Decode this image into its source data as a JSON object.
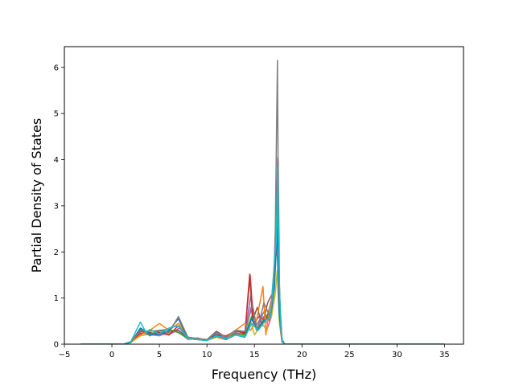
{
  "chart_data": {
    "type": "line",
    "title": "",
    "xlabel": "Frequency (THz)",
    "ylabel": "Partial Density of States",
    "xlim": [
      -5,
      37
    ],
    "ylim": [
      0,
      6.45
    ],
    "xticks": [
      -5,
      0,
      5,
      10,
      15,
      20,
      25,
      30,
      35
    ],
    "yticks": [
      0,
      1,
      2,
      3,
      4,
      5,
      6
    ],
    "grid": false,
    "legend": "none",
    "x_range_plotted": [
      -3.3,
      35
    ],
    "series": [
      {
        "color": "#bcbd22",
        "points": [
          [
            -3.3,
            0
          ],
          [
            1.2,
            0
          ],
          [
            2,
            0.04
          ],
          [
            3,
            0.18
          ],
          [
            4,
            0.22
          ],
          [
            5,
            0.28
          ],
          [
            6,
            0.22
          ],
          [
            7,
            0.3
          ],
          [
            8,
            0.12
          ],
          [
            9,
            0.1
          ],
          [
            10,
            0.08
          ],
          [
            11,
            0.15
          ],
          [
            12,
            0.12
          ],
          [
            13,
            0.2
          ],
          [
            14,
            0.18
          ],
          [
            14.6,
            0.5
          ],
          [
            15,
            0.2
          ],
          [
            15.8,
            0.45
          ],
          [
            16.3,
            0.3
          ],
          [
            16.8,
            0.6
          ],
          [
            17.2,
            1.1
          ],
          [
            17.4,
            1.6
          ],
          [
            17.6,
            0.5
          ],
          [
            17.9,
            0.05
          ],
          [
            18.2,
            0
          ],
          [
            35,
            0
          ]
        ]
      },
      {
        "color": "#e377c2",
        "points": [
          [
            -3.3,
            0
          ],
          [
            1.2,
            0
          ],
          [
            2,
            0.05
          ],
          [
            3,
            0.25
          ],
          [
            4,
            0.2
          ],
          [
            5,
            0.18
          ],
          [
            6,
            0.25
          ],
          [
            7,
            0.28
          ],
          [
            8,
            0.1
          ],
          [
            9,
            0.14
          ],
          [
            10,
            0.08
          ],
          [
            11,
            0.18
          ],
          [
            12,
            0.14
          ],
          [
            13,
            0.22
          ],
          [
            14,
            0.15
          ],
          [
            14.6,
            0.8
          ],
          [
            15.2,
            0.3
          ],
          [
            15.9,
            0.6
          ],
          [
            16.5,
            0.4
          ],
          [
            16.9,
            0.9
          ],
          [
            17.2,
            2.1
          ],
          [
            17.4,
            2.8
          ],
          [
            17.6,
            0.9
          ],
          [
            17.9,
            0.1
          ],
          [
            18.2,
            0
          ],
          [
            35,
            0
          ]
        ]
      },
      {
        "color": "#9467bd",
        "points": [
          [
            -3.3,
            0
          ],
          [
            1.2,
            0
          ],
          [
            2.1,
            0.06
          ],
          [
            3.2,
            0.3
          ],
          [
            4,
            0.18
          ],
          [
            5.1,
            0.3
          ],
          [
            6,
            0.2
          ],
          [
            7.1,
            0.35
          ],
          [
            8,
            0.12
          ],
          [
            9,
            0.1
          ],
          [
            10,
            0.1
          ],
          [
            11,
            0.22
          ],
          [
            12,
            0.12
          ],
          [
            13,
            0.25
          ],
          [
            14,
            0.2
          ],
          [
            14.6,
            1.05
          ],
          [
            15.2,
            0.4
          ],
          [
            16,
            0.7
          ],
          [
            16.6,
            0.5
          ],
          [
            17,
            1.1
          ],
          [
            17.25,
            2.6
          ],
          [
            17.45,
            4.05
          ],
          [
            17.6,
            1.2
          ],
          [
            17.9,
            0.1
          ],
          [
            18.2,
            0
          ],
          [
            35,
            0
          ]
        ]
      },
      {
        "color": "#8c564b",
        "points": [
          [
            -3.3,
            0
          ],
          [
            1.2,
            0
          ],
          [
            2,
            0.05
          ],
          [
            3,
            0.28
          ],
          [
            4,
            0.25
          ],
          [
            5,
            0.22
          ],
          [
            6,
            0.28
          ],
          [
            7,
            0.3
          ],
          [
            8,
            0.14
          ],
          [
            9,
            0.12
          ],
          [
            10,
            0.1
          ],
          [
            11,
            0.28
          ],
          [
            12,
            0.15
          ],
          [
            13,
            0.3
          ],
          [
            14,
            0.22
          ],
          [
            14.5,
            1.52
          ],
          [
            14.8,
            0.5
          ],
          [
            15.3,
            0.8
          ],
          [
            15.8,
            0.4
          ],
          [
            16.4,
            0.9
          ],
          [
            16.9,
            1.1
          ],
          [
            17.2,
            2.0
          ],
          [
            17.45,
            3.7
          ],
          [
            17.6,
            1.0
          ],
          [
            17.9,
            0.08
          ],
          [
            18.2,
            0
          ],
          [
            35,
            0
          ]
        ]
      },
      {
        "color": "#d62728",
        "points": [
          [
            -3.3,
            0
          ],
          [
            1.2,
            0
          ],
          [
            2,
            0.05
          ],
          [
            3,
            0.22
          ],
          [
            4,
            0.3
          ],
          [
            5,
            0.25
          ],
          [
            6,
            0.2
          ],
          [
            7,
            0.4
          ],
          [
            8,
            0.15
          ],
          [
            9,
            0.12
          ],
          [
            10,
            0.1
          ],
          [
            11,
            0.2
          ],
          [
            12,
            0.18
          ],
          [
            13,
            0.28
          ],
          [
            14,
            0.25
          ],
          [
            14.55,
            1.5
          ],
          [
            14.9,
            0.45
          ],
          [
            15.5,
            0.6
          ],
          [
            16.2,
            0.5
          ],
          [
            16.8,
            0.95
          ],
          [
            17.15,
            1.8
          ],
          [
            17.35,
            2.0
          ],
          [
            17.5,
            4.0
          ],
          [
            17.65,
            0.9
          ],
          [
            17.9,
            0.06
          ],
          [
            18.2,
            0
          ],
          [
            35,
            0
          ]
        ]
      },
      {
        "color": "#2ca02c",
        "points": [
          [
            -3.3,
            0
          ],
          [
            1.2,
            0
          ],
          [
            2,
            0.04
          ],
          [
            3,
            0.32
          ],
          [
            4,
            0.2
          ],
          [
            5,
            0.3
          ],
          [
            6,
            0.32
          ],
          [
            7,
            0.25
          ],
          [
            8,
            0.12
          ],
          [
            9,
            0.1
          ],
          [
            10,
            0.08
          ],
          [
            11,
            0.18
          ],
          [
            12,
            0.1
          ],
          [
            13,
            0.24
          ],
          [
            14,
            0.2
          ],
          [
            14.7,
            0.6
          ],
          [
            15.3,
            0.3
          ],
          [
            16,
            0.55
          ],
          [
            16.7,
            0.7
          ],
          [
            17.1,
            1.4
          ],
          [
            17.4,
            3.0
          ],
          [
            17.6,
            0.8
          ],
          [
            17.9,
            0.06
          ],
          [
            18.2,
            0
          ],
          [
            35,
            0
          ]
        ]
      },
      {
        "color": "#ff7f0e",
        "points": [
          [
            -3.3,
            0
          ],
          [
            1.2,
            0
          ],
          [
            2,
            0.05
          ],
          [
            3,
            0.2
          ],
          [
            4,
            0.3
          ],
          [
            5,
            0.45
          ],
          [
            6,
            0.3
          ],
          [
            7,
            0.45
          ],
          [
            8,
            0.15
          ],
          [
            9,
            0.12
          ],
          [
            10,
            0.1
          ],
          [
            11,
            0.15
          ],
          [
            12,
            0.1
          ],
          [
            13,
            0.3
          ],
          [
            14,
            0.45
          ],
          [
            14.6,
            0.3
          ],
          [
            15.2,
            0.5
          ],
          [
            15.9,
            1.25
          ],
          [
            16.2,
            0.2
          ],
          [
            16.6,
            0.8
          ],
          [
            17.0,
            1.0
          ],
          [
            17.3,
            2.8
          ],
          [
            17.5,
            1.2
          ],
          [
            17.7,
            0.4
          ],
          [
            17.9,
            0.05
          ],
          [
            18.2,
            0
          ],
          [
            35,
            0
          ]
        ]
      },
      {
        "color": "#1f77b4",
        "points": [
          [
            -3.3,
            0
          ],
          [
            1.2,
            0
          ],
          [
            2,
            0.04
          ],
          [
            3,
            0.35
          ],
          [
            4,
            0.22
          ],
          [
            5,
            0.2
          ],
          [
            6,
            0.3
          ],
          [
            7,
            0.55
          ],
          [
            8,
            0.12
          ],
          [
            9,
            0.1
          ],
          [
            10,
            0.08
          ],
          [
            11,
            0.2
          ],
          [
            12,
            0.1
          ],
          [
            13,
            0.2
          ],
          [
            14,
            0.15
          ],
          [
            14.7,
            0.55
          ],
          [
            15.3,
            0.35
          ],
          [
            16,
            0.5
          ],
          [
            16.7,
            0.6
          ],
          [
            17.1,
            1.2
          ],
          [
            17.4,
            2.5
          ],
          [
            17.6,
            0.7
          ],
          [
            17.9,
            0.05
          ],
          [
            18.2,
            0
          ],
          [
            35,
            0
          ]
        ]
      },
      {
        "color": "#7f7f7f",
        "points": [
          [
            -3.3,
            0
          ],
          [
            1.2,
            0
          ],
          [
            2,
            0.05
          ],
          [
            3,
            0.3
          ],
          [
            4,
            0.28
          ],
          [
            5,
            0.3
          ],
          [
            6,
            0.25
          ],
          [
            7,
            0.6
          ],
          [
            8,
            0.15
          ],
          [
            9,
            0.12
          ],
          [
            10,
            0.1
          ],
          [
            11,
            0.25
          ],
          [
            12,
            0.15
          ],
          [
            13,
            0.3
          ],
          [
            14,
            0.28
          ],
          [
            14.8,
            0.85
          ],
          [
            15.3,
            0.3
          ],
          [
            16,
            0.9
          ],
          [
            16.6,
            0.6
          ],
          [
            17.0,
            1.1
          ],
          [
            17.2,
            2.5
          ],
          [
            17.42,
            6.15
          ],
          [
            17.55,
            2.0
          ],
          [
            17.75,
            0.4
          ],
          [
            17.95,
            0.05
          ],
          [
            18.2,
            0
          ],
          [
            35,
            0
          ]
        ]
      },
      {
        "color": "#17becf",
        "points": [
          [
            -3.3,
            0
          ],
          [
            1.2,
            0
          ],
          [
            2,
            0.06
          ],
          [
            3,
            0.48
          ],
          [
            3.6,
            0.25
          ],
          [
            4,
            0.32
          ],
          [
            5,
            0.22
          ],
          [
            6,
            0.35
          ],
          [
            7,
            0.4
          ],
          [
            8,
            0.12
          ],
          [
            9,
            0.1
          ],
          [
            10,
            0.08
          ],
          [
            11,
            0.18
          ],
          [
            12,
            0.12
          ],
          [
            13,
            0.2
          ],
          [
            14,
            0.15
          ],
          [
            14.7,
            0.45
          ],
          [
            15.4,
            0.3
          ],
          [
            16.1,
            0.5
          ],
          [
            16.7,
            0.6
          ],
          [
            17.1,
            1.8
          ],
          [
            17.3,
            2.2
          ],
          [
            17.45,
            3.85
          ],
          [
            17.6,
            1.4
          ],
          [
            17.8,
            0.3
          ],
          [
            17.95,
            0.04
          ],
          [
            18.2,
            0
          ],
          [
            35,
            0
          ]
        ]
      }
    ]
  }
}
